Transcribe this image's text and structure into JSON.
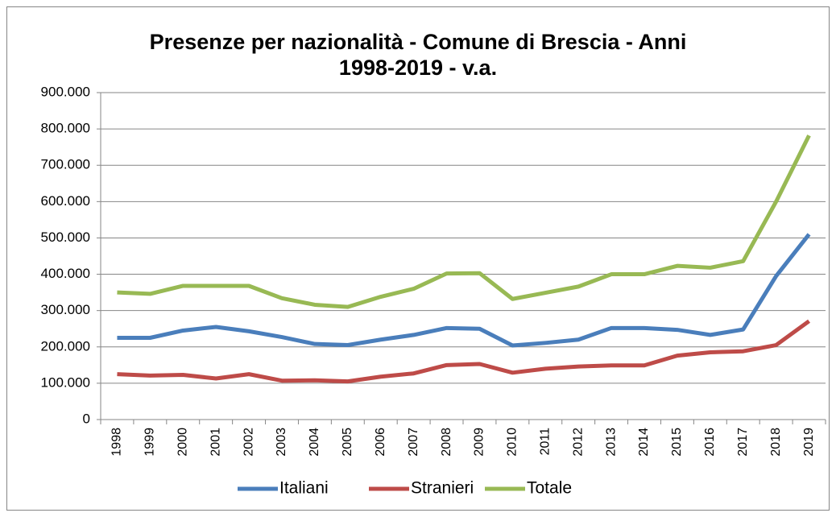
{
  "chart_data": {
    "type": "line",
    "title": "Presenze per nazionalità - Comune di Brescia - Anni 1998-2019 - v.a.",
    "categories": [
      "1998",
      "1999",
      "2000",
      "2001",
      "2002",
      "2003",
      "2004",
      "2005",
      "2006",
      "2007",
      "2008",
      "2009",
      "2010",
      "2011",
      "2012",
      "2013",
      "2014",
      "2015",
      "2016",
      "2017",
      "2018",
      "2019"
    ],
    "series": [
      {
        "name": "Italiani",
        "color": "#4a7ebb",
        "values": [
          225000,
          225000,
          245000,
          255000,
          243000,
          227000,
          208000,
          205000,
          220000,
          233000,
          252000,
          250000,
          204000,
          211000,
          220000,
          252000,
          252000,
          247000,
          233000,
          248000,
          395000,
          510000
        ]
      },
      {
        "name": "Stranieri",
        "color": "#be4b48",
        "values": [
          125000,
          121000,
          123000,
          113000,
          125000,
          107000,
          108000,
          105000,
          118000,
          127000,
          150000,
          153000,
          129000,
          140000,
          146000,
          149000,
          149000,
          176000,
          185000,
          188000,
          205000,
          271000
        ]
      },
      {
        "name": "Totale",
        "color": "#98b954",
        "values": [
          350000,
          346000,
          368000,
          368000,
          368000,
          334000,
          316000,
          310000,
          338000,
          360000,
          402000,
          403000,
          332000,
          349000,
          366000,
          400000,
          400000,
          423000,
          418000,
          436000,
          600000,
          782000
        ]
      }
    ],
    "ylim": [
      0,
      900000
    ],
    "yticks": [
      0,
      {
        "value": 100000,
        "label": "100.000"
      },
      {
        "value": 200000,
        "label": "200.000"
      },
      {
        "value": 300000,
        "label": "300.000"
      },
      {
        "value": 400000,
        "label": "400.000"
      },
      {
        "value": 500000,
        "label": "500.000"
      },
      {
        "value": 600000,
        "label": "600.000"
      },
      {
        "value": 700000,
        "label": "700.000"
      },
      {
        "value": 800000,
        "label": "800.000"
      },
      {
        "value": 900000,
        "label": "900.000"
      }
    ],
    "grid": true,
    "legend": "bottom"
  }
}
